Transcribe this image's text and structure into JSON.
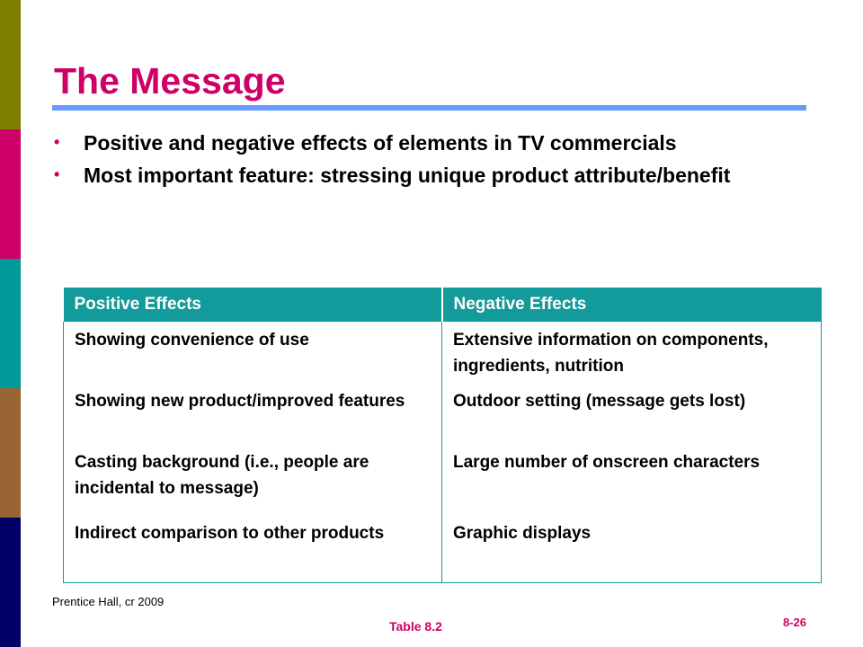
{
  "colors": {
    "title": "#cc0066",
    "rule": "#6699ff",
    "table_header_bg": "#139a9a",
    "side_bands": [
      "#808000",
      "#cc0066",
      "#009999",
      "#996633",
      "#000066"
    ]
  },
  "title": "The Message",
  "bullets": [
    "Positive and negative effects of elements in TV commercials",
    "Most important feature: stressing unique product attribute/benefit"
  ],
  "bullet_symbol": "•",
  "table": {
    "headers": [
      "Positive Effects",
      "Negative Effects"
    ],
    "rows": [
      [
        "Showing convenience of use",
        "Extensive information on components, ingredients, nutrition"
      ],
      [
        "Showing new product/improved features",
        "Outdoor setting (message gets lost)"
      ],
      [
        "Casting background (i.e., people are incidental to message)",
        "Large number of onscreen characters"
      ],
      [
        "Indirect comparison to other products",
        "Graphic displays"
      ]
    ]
  },
  "source": "Prentice Hall, cr 2009",
  "caption": "Table 8.2",
  "page_number": "8-26"
}
